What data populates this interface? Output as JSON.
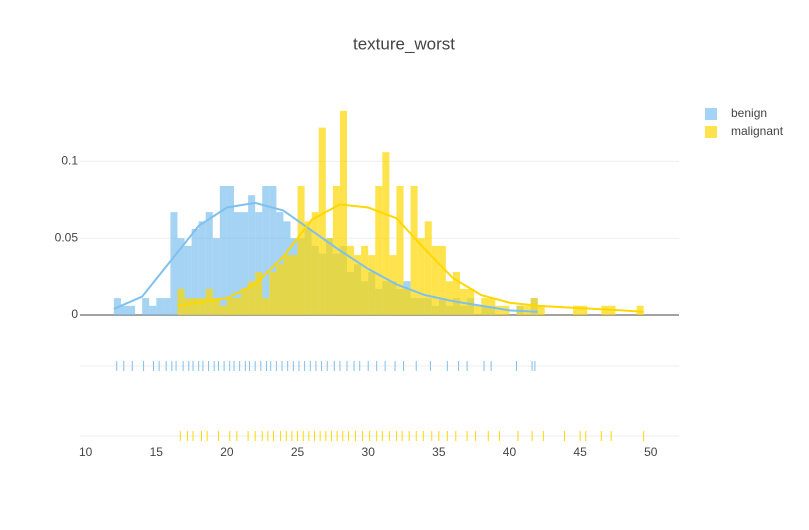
{
  "chart_data": {
    "type": "histogram",
    "title": "texture_worst",
    "xlim": [
      9.6,
      52
    ],
    "xticks": [
      10,
      15,
      20,
      25,
      30,
      35,
      40,
      45,
      50
    ],
    "ylim": [
      0,
      0.14
    ],
    "yticks": [
      0,
      0.05,
      0.1
    ],
    "grid": true,
    "legend": "right",
    "series": [
      {
        "name": "benign",
        "color": "#7ec0ee",
        "bins": [
          12,
          12.5,
          13,
          13.5,
          14,
          14.5,
          15,
          15.5,
          16,
          16.5,
          17,
          17.5,
          18,
          18.5,
          19,
          19.5,
          20,
          20.5,
          21,
          21.5,
          22,
          22.5,
          23,
          23.5,
          24,
          24.5,
          25,
          25.5,
          26,
          26.5,
          27,
          27.5,
          28,
          28.5,
          29,
          29.5,
          30,
          30.5,
          31,
          31.5,
          32,
          32.5,
          33,
          33.5,
          34,
          34.5,
          35,
          35.5,
          36,
          36.5,
          37,
          37.5,
          38,
          38.5,
          39,
          39.5,
          40,
          40.5,
          41,
          41.5,
          42
        ],
        "values": [
          0.011,
          0.006,
          0.006,
          0,
          0.011,
          0.006,
          0.011,
          0.011,
          0.067,
          0.05,
          0.045,
          0.056,
          0.061,
          0.067,
          0.05,
          0.084,
          0.084,
          0.067,
          0.067,
          0.078,
          0.067,
          0.084,
          0.084,
          0.067,
          0.061,
          0.05,
          0.05,
          0.056,
          0.045,
          0.04,
          0.05,
          0.04,
          0.045,
          0.028,
          0.033,
          0.022,
          0.028,
          0.017,
          0.022,
          0.022,
          0.017,
          0.022,
          0.011,
          0.011,
          0.011,
          0.006,
          0.011,
          0.006,
          0.011,
          0.006,
          0.011,
          0,
          0.006,
          0.006,
          0,
          0,
          0,
          0.006,
          0,
          0.011
        ],
        "kde": {
          "x": [
            12,
            14,
            16,
            18,
            20,
            22,
            24,
            26,
            28,
            30,
            32,
            34,
            36,
            38,
            40,
            42
          ],
          "y": [
            0.004,
            0.012,
            0.035,
            0.058,
            0.07,
            0.073,
            0.068,
            0.055,
            0.042,
            0.03,
            0.02,
            0.013,
            0.009,
            0.006,
            0.003,
            0.002
          ]
        },
        "rug": [
          12.2,
          12.7,
          13.3,
          14.1,
          14.8,
          15.2,
          15.7,
          16.1,
          16.4,
          16.9,
          17.3,
          17.6,
          18.0,
          18.3,
          18.7,
          19.1,
          19.4,
          19.8,
          20.2,
          20.5,
          20.9,
          21.3,
          21.6,
          22.0,
          22.4,
          22.8,
          23.1,
          23.5,
          23.9,
          24.3,
          24.7,
          25.1,
          25.5,
          25.9,
          26.3,
          26.7,
          27.1,
          27.6,
          28.0,
          28.5,
          29.0,
          29.4,
          30.0,
          30.6,
          31.2,
          31.9,
          32.5,
          33.4,
          34.4,
          35.6,
          36.4,
          37.0,
          38.2,
          38.7,
          40.5,
          41.6,
          41.8
        ]
      },
      {
        "name": "malignant",
        "color": "#ffd700",
        "bins": [
          16.5,
          17,
          17.5,
          18,
          18.5,
          19,
          19.5,
          20,
          20.5,
          21,
          21.5,
          22,
          22.5,
          23,
          23.5,
          24,
          24.5,
          25,
          25.5,
          26,
          26.5,
          27,
          27.5,
          28,
          28.5,
          29,
          29.5,
          30,
          30.5,
          31,
          31.5,
          32,
          32.5,
          33,
          33.5,
          34,
          34.5,
          35,
          35.5,
          36,
          36.5,
          37,
          37.5,
          38,
          38.5,
          39,
          39.5,
          40,
          40.5,
          41,
          41.5,
          42,
          42.5,
          43,
          43.5,
          44,
          44.5,
          45,
          45.5,
          46,
          46.5,
          47,
          47.5,
          48,
          48.5,
          49,
          49.5
        ],
        "values": [
          0.017,
          0.011,
          0.011,
          0.011,
          0.017,
          0.011,
          0.006,
          0.011,
          0.011,
          0.017,
          0.022,
          0.028,
          0.011,
          0.028,
          0.033,
          0.039,
          0.039,
          0.084,
          0.061,
          0.067,
          0.122,
          0.05,
          0.084,
          0.133,
          0.045,
          0.039,
          0.045,
          0.039,
          0.084,
          0.106,
          0.039,
          0.084,
          0.017,
          0.084,
          0.05,
          0.061,
          0.045,
          0.045,
          0.022,
          0.028,
          0.017,
          0.017,
          0.006,
          0.011,
          0.011,
          0.006,
          0.006,
          0,
          0.006,
          0.006,
          0.011,
          0.006,
          0,
          0,
          0,
          0,
          0.006,
          0.006,
          0,
          0,
          0.006,
          0.006,
          0,
          0,
          0,
          0.006
        ],
        "kde": {
          "x": [
            16.5,
            18,
            20,
            22,
            24,
            26,
            28,
            30,
            32,
            34,
            36,
            38,
            40,
            42,
            44,
            46,
            48,
            49.5
          ],
          "y": [
            0.006,
            0.008,
            0.011,
            0.02,
            0.038,
            0.062,
            0.072,
            0.07,
            0.063,
            0.043,
            0.024,
            0.013,
            0.008,
            0.006,
            0.005,
            0.004,
            0.003,
            0.002
          ]
        },
        "rug": [
          16.7,
          17.2,
          17.6,
          18.2,
          18.6,
          19.4,
          20.2,
          20.7,
          21.5,
          22.0,
          22.5,
          22.9,
          23.3,
          23.8,
          24.2,
          24.6,
          25.0,
          25.4,
          25.8,
          26.2,
          26.6,
          27.0,
          27.4,
          27.8,
          28.2,
          28.6,
          29.1,
          29.6,
          30.1,
          30.6,
          31.0,
          31.5,
          32.0,
          32.4,
          32.9,
          33.4,
          33.9,
          34.5,
          35.0,
          35.6,
          36.2,
          37.0,
          37.6,
          38.5,
          39.3,
          40.6,
          41.6,
          42.4,
          43.9,
          45.0,
          45.4,
          46.5,
          47.2,
          49.5
        ]
      }
    ]
  }
}
